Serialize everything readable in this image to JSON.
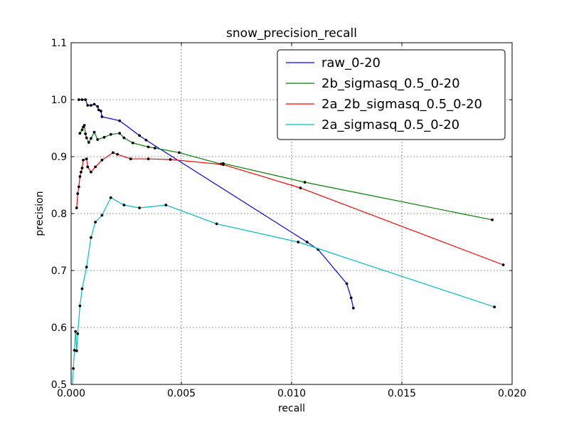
{
  "chart_data": {
    "type": "line",
    "title": "snow_precision_recall",
    "xlabel": "recall",
    "ylabel": "precision",
    "xlim": [
      0.0,
      0.02
    ],
    "ylim": [
      0.5,
      1.1
    ],
    "xticks": [
      0.0,
      0.005,
      0.01,
      0.015,
      0.02
    ],
    "xtick_labels": [
      "0.000",
      "0.005",
      "0.010",
      "0.015",
      "0.020"
    ],
    "yticks": [
      0.5,
      0.6,
      0.7,
      0.8,
      0.9,
      1.0,
      1.1
    ],
    "ytick_labels": [
      "0.5",
      "0.6",
      "0.7",
      "0.8",
      "0.9",
      "1.0",
      "1.1"
    ],
    "grid": true,
    "legend_position": "top-right",
    "series": [
      {
        "name": "raw_0-20",
        "color": "#0000ff",
        "points": [
          [
            0.00035,
            1.0
          ],
          [
            0.0005,
            1.0
          ],
          [
            0.00065,
            1.0
          ],
          [
            0.00075,
            0.99
          ],
          [
            0.0009,
            0.99
          ],
          [
            0.00105,
            0.992
          ],
          [
            0.0012,
            0.988
          ],
          [
            0.00125,
            0.982
          ],
          [
            0.00135,
            0.98
          ],
          [
            0.0014,
            0.97
          ],
          [
            0.0022,
            0.963
          ],
          [
            0.0031,
            0.937
          ],
          [
            0.0034,
            0.929
          ],
          [
            0.0107,
            0.75
          ],
          [
            0.0112,
            0.737
          ],
          [
            0.0125,
            0.677
          ],
          [
            0.0127,
            0.652
          ],
          [
            0.0128,
            0.634
          ]
        ]
      },
      {
        "name": "2b_sigmasq_0.5_0-20",
        "color": "#008000",
        "points": [
          [
            0.0004,
            0.941
          ],
          [
            0.0005,
            0.947
          ],
          [
            0.00055,
            0.952
          ],
          [
            0.0006,
            0.955
          ],
          [
            0.00065,
            0.94
          ],
          [
            0.0007,
            0.933
          ],
          [
            0.0008,
            0.925
          ],
          [
            0.0009,
            0.932
          ],
          [
            0.00105,
            0.943
          ],
          [
            0.0012,
            0.93
          ],
          [
            0.0015,
            0.934
          ],
          [
            0.0018,
            0.939
          ],
          [
            0.0022,
            0.941
          ],
          [
            0.0024,
            0.933
          ],
          [
            0.0028,
            0.924
          ],
          [
            0.0035,
            0.917
          ],
          [
            0.0038,
            0.915
          ],
          [
            0.0049,
            0.907
          ],
          [
            0.0068,
            0.887
          ],
          [
            0.0069,
            0.888
          ],
          [
            0.0106,
            0.855
          ],
          [
            0.0191,
            0.789
          ]
        ]
      },
      {
        "name": "2a_2b_sigmasq_0.5_0-20",
        "color": "#ff0000",
        "points": [
          [
            0.00025,
            0.81
          ],
          [
            0.0003,
            0.835
          ],
          [
            0.00035,
            0.847
          ],
          [
            0.0004,
            0.865
          ],
          [
            0.00045,
            0.873
          ],
          [
            0.0005,
            0.88
          ],
          [
            0.00055,
            0.894
          ],
          [
            0.0007,
            0.896
          ],
          [
            0.00075,
            0.882
          ],
          [
            0.0009,
            0.873
          ],
          [
            0.0011,
            0.882
          ],
          [
            0.0014,
            0.894
          ],
          [
            0.0019,
            0.907
          ],
          [
            0.0021,
            0.904
          ],
          [
            0.0027,
            0.896
          ],
          [
            0.0035,
            0.896
          ],
          [
            0.0045,
            0.895
          ],
          [
            0.0069,
            0.886
          ],
          [
            0.0104,
            0.845
          ],
          [
            0.0196,
            0.71
          ]
        ]
      },
      {
        "name": "2a_sigmasq_0.5_0-20",
        "color": "#00bfbf",
        "points": [
          [
            5e-05,
            0.495
          ],
          [
            0.0001,
            0.528
          ],
          [
            0.00015,
            0.56
          ],
          [
            0.0002,
            0.593
          ],
          [
            0.00025,
            0.559
          ],
          [
            0.0003,
            0.589
          ],
          [
            0.0004,
            0.638
          ],
          [
            0.0005,
            0.668
          ],
          [
            0.0007,
            0.706
          ],
          [
            0.0009,
            0.758
          ],
          [
            0.0011,
            0.785
          ],
          [
            0.0014,
            0.797
          ],
          [
            0.0018,
            0.828
          ],
          [
            0.0024,
            0.815
          ],
          [
            0.0031,
            0.81
          ],
          [
            0.0043,
            0.815
          ],
          [
            0.0066,
            0.782
          ],
          [
            0.0103,
            0.75
          ],
          [
            0.0192,
            0.636
          ]
        ]
      }
    ]
  }
}
